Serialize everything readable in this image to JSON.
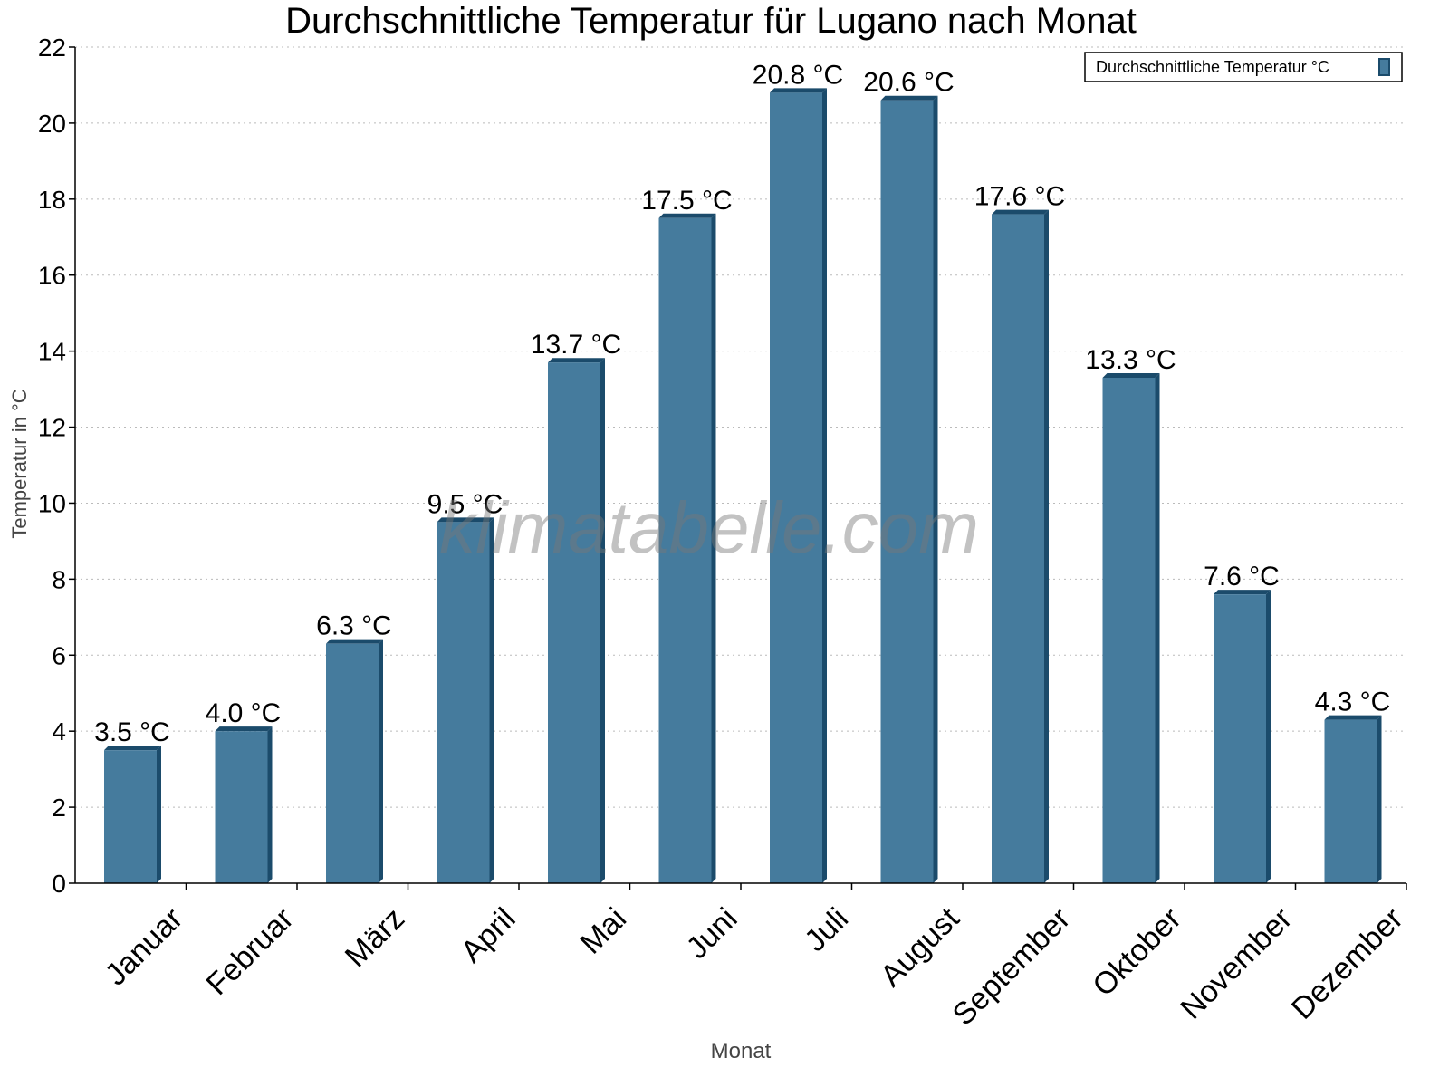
{
  "chart_data": {
    "type": "bar",
    "title": "Durchschnittliche Temperatur für Lugano nach Monat",
    "xlabel": "Monat",
    "ylabel": "Temperatur in °C",
    "categories": [
      "Januar",
      "Februar",
      "März",
      "April",
      "Mai",
      "Juni",
      "Juli",
      "August",
      "September",
      "Oktober",
      "November",
      "Dezember"
    ],
    "series": [
      {
        "name": "Durchschnittliche Temperatur °C",
        "values": [
          3.5,
          4.0,
          6.3,
          9.5,
          13.7,
          17.5,
          20.8,
          20.6,
          17.6,
          13.3,
          7.6,
          4.3
        ],
        "color": "#457b9d",
        "side_color": "#1b4b6b"
      }
    ],
    "data_labels": [
      "3.5 °C",
      "4.0 °C",
      "6.3 °C",
      "9.5 °C",
      "13.7 °C",
      "17.5 °C",
      "20.8 °C",
      "20.6 °C",
      "17.6 °C",
      "13.3 °C",
      "7.6 °C",
      "4.3 °C"
    ],
    "ylim": [
      0,
      22
    ],
    "yticks": [
      0,
      2,
      4,
      6,
      8,
      10,
      12,
      14,
      16,
      18,
      20,
      22
    ],
    "grid": true,
    "legend": "top-right",
    "watermark": "klimatabelle.com"
  }
}
